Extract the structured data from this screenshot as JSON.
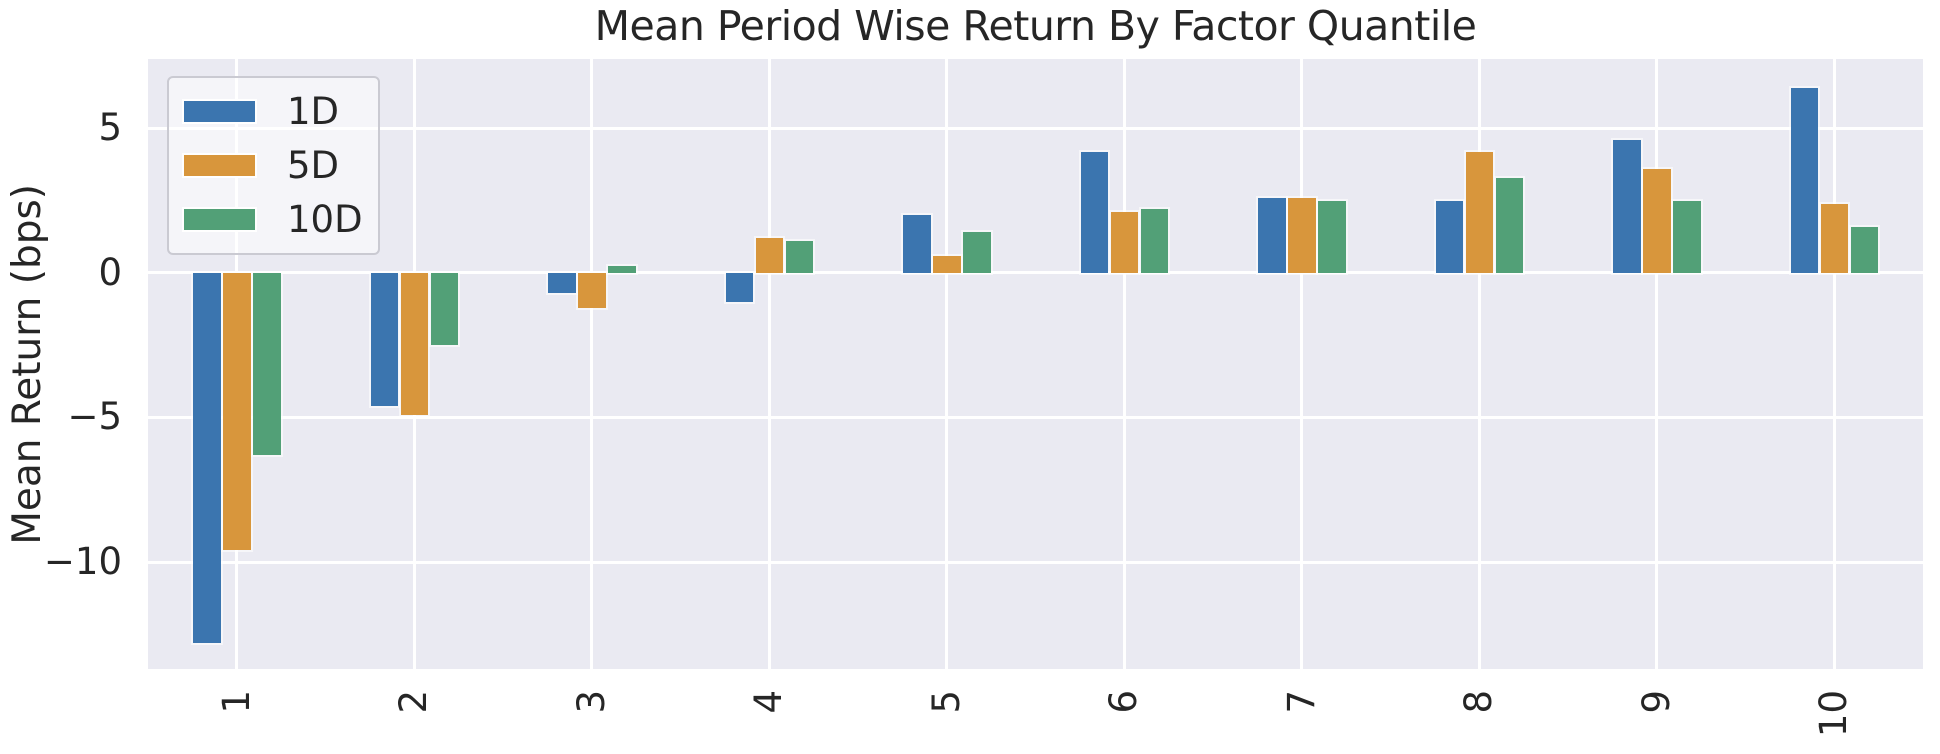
{
  "chart_data": {
    "type": "bar",
    "title": "Mean Period Wise Return By Factor Quantile",
    "xlabel": "",
    "ylabel": "Mean Return (bps)",
    "categories": [
      "1",
      "2",
      "3",
      "4",
      "5",
      "6",
      "7",
      "8",
      "9",
      "10"
    ],
    "series": [
      {
        "name": "1D",
        "color": "#3B75AF",
        "values": [
          -12.8,
          -4.6,
          -0.7,
          -1.0,
          2.0,
          4.2,
          2.6,
          2.5,
          4.6,
          6.4
        ]
      },
      {
        "name": "5D",
        "color": "#D8963C",
        "values": [
          -9.6,
          -4.9,
          -1.2,
          1.2,
          0.6,
          2.1,
          2.6,
          4.2,
          3.6,
          2.4
        ]
      },
      {
        "name": "10D",
        "color": "#52A077",
        "values": [
          -6.3,
          -2.5,
          0.25,
          1.1,
          1.4,
          2.2,
          2.5,
          3.3,
          2.5,
          1.6
        ]
      }
    ],
    "ylim": [
      -13.7,
      7.4
    ],
    "yticks": [
      5,
      0,
      -5,
      -10
    ],
    "grid": true,
    "legend_position": "upper left",
    "plot_bg": "#EAEAF2",
    "grid_color": "#FFFFFF",
    "text_color": "#262626"
  }
}
